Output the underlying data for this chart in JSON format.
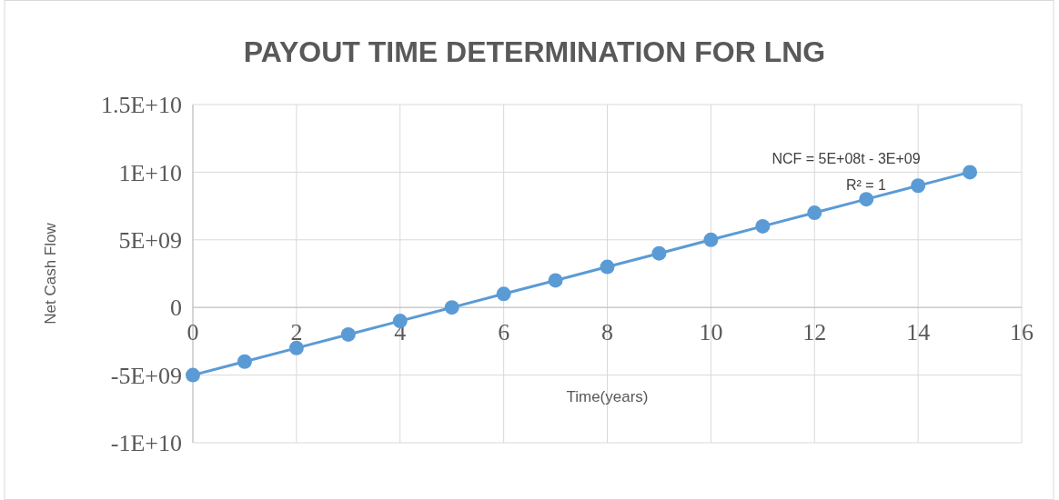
{
  "chart_data": {
    "type": "line",
    "title": "PAYOUT TIME DETERMINATION FOR LNG",
    "xlabel": "Time(years)",
    "ylabel": "Net Cash Flow",
    "x": [
      0,
      1,
      2,
      3,
      4,
      5,
      6,
      7,
      8,
      9,
      10,
      11,
      12,
      13,
      14,
      15
    ],
    "series": [
      {
        "color": "#5b9bd5",
        "values": [
          -5000000000,
          -4000000000,
          -3000000000,
          -2000000000,
          -1000000000,
          0,
          1000000000,
          2000000000,
          3000000000,
          4000000000,
          5000000000,
          6000000000,
          7000000000,
          8000000000,
          9000000000,
          10000000000
        ]
      }
    ],
    "xlim": [
      0,
      16
    ],
    "xticks": [
      0,
      2,
      4,
      6,
      8,
      10,
      12,
      14,
      16
    ],
    "ylim": [
      -10000000000,
      15000000000
    ],
    "yticks": [
      {
        "value": -10000000000,
        "label": "-1E+10"
      },
      {
        "value": -5000000000,
        "label": "-5E+09"
      },
      {
        "value": 0,
        "label": "0"
      },
      {
        "value": 5000000000,
        "label": "5E+09"
      },
      {
        "value": 10000000000,
        "label": "1E+10"
      },
      {
        "value": 15000000000,
        "label": "1.5E+10"
      }
    ],
    "grid": true,
    "marker": "circle",
    "line_style": "solid",
    "annotations": [
      "NCF = 5E+08t - 3E+09",
      "R² = 1"
    ]
  }
}
